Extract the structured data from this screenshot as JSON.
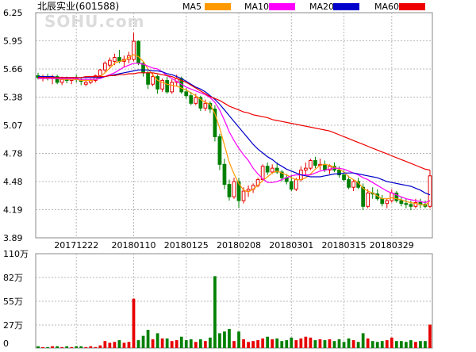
{
  "header": {
    "title": "北辰实业(601588)",
    "watermark": "SOHU.com",
    "legend": [
      {
        "name": "MA5",
        "color": "#ff9900"
      },
      {
        "name": "MA10",
        "color": "#ff00ff"
      },
      {
        "name": "MA20",
        "color": "#0000cc"
      },
      {
        "name": "MA60",
        "color": "#ee0000"
      }
    ]
  },
  "colors": {
    "up": "#e60000",
    "down": "#008000",
    "grid": "#b8b8b8",
    "frame": "#888888"
  },
  "chart_data": [
    {
      "type": "candlestick",
      "ylim": [
        3.89,
        6.25
      ],
      "y_ticks": [
        "6.25",
        "5.95",
        "5.66",
        "5.38",
        "5.07",
        "4.78",
        "4.48",
        "4.19",
        "3.89"
      ],
      "x_labels": [
        {
          "label": "20171222",
          "index": 8
        },
        {
          "label": "20180110",
          "index": 20
        },
        {
          "label": "20180125",
          "index": 31
        },
        {
          "label": "20180208",
          "index": 42
        },
        {
          "label": "20180301",
          "index": 53
        },
        {
          "label": "20180315",
          "index": 64
        },
        {
          "label": "20180329",
          "index": 74
        }
      ],
      "candles": [
        [
          5.59,
          5.62,
          5.55,
          5.57
        ],
        [
          5.57,
          5.6,
          5.53,
          5.58
        ],
        [
          5.58,
          5.61,
          5.54,
          5.56
        ],
        [
          5.56,
          5.6,
          5.5,
          5.58
        ],
        [
          5.58,
          5.6,
          5.5,
          5.52
        ],
        [
          5.52,
          5.58,
          5.49,
          5.55
        ],
        [
          5.55,
          5.58,
          5.51,
          5.54
        ],
        [
          5.54,
          5.57,
          5.5,
          5.56
        ],
        [
          5.56,
          5.6,
          5.52,
          5.55
        ],
        [
          5.55,
          5.57,
          5.49,
          5.53
        ],
        [
          5.5,
          5.56,
          5.48,
          5.52
        ],
        [
          5.52,
          5.56,
          5.5,
          5.54
        ],
        [
          5.54,
          5.6,
          5.52,
          5.59
        ],
        [
          5.59,
          5.66,
          5.57,
          5.65
        ],
        [
          5.65,
          5.74,
          5.62,
          5.72
        ],
        [
          5.7,
          5.78,
          5.66,
          5.75
        ],
        [
          5.74,
          5.82,
          5.7,
          5.78
        ],
        [
          5.78,
          5.86,
          5.72,
          5.74
        ],
        [
          5.74,
          5.8,
          5.68,
          5.76
        ],
        [
          5.76,
          5.84,
          5.72,
          5.8
        ],
        [
          5.76,
          6.04,
          5.74,
          5.95
        ],
        [
          5.95,
          5.96,
          5.7,
          5.72
        ],
        [
          5.72,
          5.74,
          5.58,
          5.62
        ],
        [
          5.62,
          5.64,
          5.45,
          5.5
        ],
        [
          5.5,
          5.62,
          5.48,
          5.58
        ],
        [
          5.58,
          5.6,
          5.4,
          5.45
        ],
        [
          5.45,
          5.56,
          5.42,
          5.54
        ],
        [
          5.54,
          5.58,
          5.4,
          5.42
        ],
        [
          5.42,
          5.55,
          5.4,
          5.52
        ],
        [
          5.52,
          5.6,
          5.48,
          5.56
        ],
        [
          5.56,
          5.58,
          5.4,
          5.42
        ],
        [
          5.42,
          5.46,
          5.35,
          5.38
        ],
        [
          5.38,
          5.42,
          5.28,
          5.3
        ],
        [
          5.3,
          5.4,
          5.28,
          5.36
        ],
        [
          5.36,
          5.38,
          5.22,
          5.25
        ],
        [
          5.25,
          5.34,
          5.22,
          5.3
        ],
        [
          5.3,
          5.32,
          5.2,
          5.24
        ],
        [
          5.24,
          5.28,
          4.9,
          4.95
        ],
        [
          4.95,
          4.98,
          4.6,
          4.66
        ],
        [
          4.66,
          4.72,
          4.4,
          4.45
        ],
        [
          4.45,
          4.5,
          4.28,
          4.32
        ],
        [
          4.32,
          4.52,
          4.3,
          4.48
        ],
        [
          4.48,
          4.52,
          4.2,
          4.28
        ],
        [
          4.28,
          4.42,
          4.25,
          4.38
        ],
        [
          4.38,
          4.44,
          4.32,
          4.4
        ],
        [
          4.4,
          4.46,
          4.36,
          4.44
        ],
        [
          4.44,
          4.52,
          4.42,
          4.5
        ],
        [
          4.5,
          4.66,
          4.48,
          4.64
        ],
        [
          4.64,
          4.68,
          4.55,
          4.58
        ],
        [
          4.58,
          4.66,
          4.56,
          4.62
        ],
        [
          4.62,
          4.68,
          4.56,
          4.58
        ],
        [
          4.58,
          4.6,
          4.48,
          4.52
        ],
        [
          4.52,
          4.56,
          4.45,
          4.48
        ],
        [
          4.48,
          4.55,
          4.38,
          4.4
        ],
        [
          4.4,
          4.52,
          4.38,
          4.5
        ],
        [
          4.5,
          4.64,
          4.48,
          4.6
        ],
        [
          4.6,
          4.68,
          4.55,
          4.62
        ],
        [
          4.62,
          4.72,
          4.6,
          4.7
        ],
        [
          4.7,
          4.74,
          4.62,
          4.65
        ],
        [
          4.65,
          4.72,
          4.6,
          4.66
        ],
        [
          4.66,
          4.7,
          4.58,
          4.6
        ],
        [
          4.6,
          4.66,
          4.56,
          4.64
        ],
        [
          4.64,
          4.68,
          4.58,
          4.6
        ],
        [
          4.6,
          4.64,
          4.52,
          4.55
        ],
        [
          4.55,
          4.6,
          4.48,
          4.5
        ],
        [
          4.5,
          4.54,
          4.4,
          4.42
        ],
        [
          4.42,
          4.5,
          4.38,
          4.48
        ],
        [
          4.48,
          4.52,
          4.4,
          4.42
        ],
        [
          4.42,
          4.46,
          4.18,
          4.22
        ],
        [
          4.22,
          4.4,
          4.2,
          4.36
        ],
        [
          4.36,
          4.42,
          4.3,
          4.35
        ],
        [
          4.35,
          4.4,
          4.28,
          4.3
        ],
        [
          4.3,
          4.34,
          4.22,
          4.25
        ],
        [
          4.25,
          4.3,
          4.2,
          4.28
        ],
        [
          4.28,
          4.4,
          4.26,
          4.36
        ],
        [
          4.36,
          4.38,
          4.26,
          4.28
        ],
        [
          4.28,
          4.32,
          4.22,
          4.25
        ],
        [
          4.25,
          4.3,
          4.2,
          4.24
        ],
        [
          4.24,
          4.28,
          4.18,
          4.22
        ],
        [
          4.22,
          4.3,
          4.2,
          4.26
        ],
        [
          4.26,
          4.3,
          4.2,
          4.24
        ],
        [
          4.24,
          4.28,
          4.2,
          4.22
        ],
        [
          4.22,
          4.6,
          4.2,
          4.54
        ]
      ],
      "ma": {
        "MA5": [
          5.57,
          5.57,
          5.57,
          5.57,
          5.56,
          5.55,
          5.55,
          5.55,
          5.55,
          5.54,
          5.54,
          5.54,
          5.55,
          5.58,
          5.62,
          5.67,
          5.72,
          5.74,
          5.75,
          5.78,
          5.81,
          5.79,
          5.74,
          5.66,
          5.6,
          5.54,
          5.52,
          5.5,
          5.49,
          5.48,
          5.46,
          5.44,
          5.41,
          5.38,
          5.34,
          5.31,
          5.29,
          5.19,
          5.04,
          4.86,
          4.68,
          4.56,
          4.46,
          4.39,
          4.37,
          4.4,
          4.44,
          4.49,
          4.53,
          4.57,
          4.59,
          4.57,
          4.55,
          4.52,
          4.5,
          4.5,
          4.52,
          4.56,
          4.61,
          4.65,
          4.66,
          4.65,
          4.63,
          4.61,
          4.58,
          4.53,
          4.5,
          4.47,
          4.41,
          4.38,
          4.36,
          4.33,
          4.3,
          4.3,
          4.31,
          4.3,
          4.29,
          4.27,
          4.26,
          4.25,
          4.24,
          4.23,
          4.28
        ],
        "MA10": [
          5.56,
          5.56,
          5.56,
          5.56,
          5.56,
          5.56,
          5.56,
          5.56,
          5.56,
          5.55,
          5.55,
          5.55,
          5.55,
          5.56,
          5.58,
          5.6,
          5.62,
          5.65,
          5.68,
          5.7,
          5.72,
          5.72,
          5.71,
          5.69,
          5.67,
          5.66,
          5.63,
          5.59,
          5.56,
          5.53,
          5.5,
          5.47,
          5.45,
          5.43,
          5.41,
          5.39,
          5.36,
          5.31,
          5.23,
          5.12,
          5.0,
          4.91,
          4.83,
          4.76,
          4.7,
          4.62,
          4.56,
          4.51,
          4.47,
          4.47,
          4.48,
          4.5,
          4.52,
          4.54,
          4.55,
          4.55,
          4.55,
          4.55,
          4.57,
          4.59,
          4.6,
          4.61,
          4.62,
          4.62,
          4.61,
          4.59,
          4.57,
          4.55,
          4.52,
          4.5,
          4.47,
          4.44,
          4.41,
          4.38,
          4.36,
          4.34,
          4.32,
          4.3,
          4.29,
          4.28,
          4.27,
          4.26,
          4.28
        ],
        "MA20": [
          5.58,
          5.58,
          5.58,
          5.58,
          5.57,
          5.57,
          5.57,
          5.57,
          5.57,
          5.57,
          5.57,
          5.57,
          5.57,
          5.57,
          5.58,
          5.59,
          5.6,
          5.61,
          5.62,
          5.63,
          5.64,
          5.65,
          5.65,
          5.65,
          5.64,
          5.64,
          5.63,
          5.61,
          5.6,
          5.58,
          5.56,
          5.53,
          5.5,
          5.47,
          5.45,
          5.42,
          5.38,
          5.34,
          5.29,
          5.23,
          5.17,
          5.11,
          5.05,
          4.99,
          4.93,
          4.87,
          4.82,
          4.78,
          4.74,
          4.71,
          4.67,
          4.64,
          4.61,
          4.59,
          4.57,
          4.55,
          4.54,
          4.53,
          4.53,
          4.53,
          4.54,
          4.55,
          4.56,
          4.56,
          4.57,
          4.57,
          4.57,
          4.56,
          4.55,
          4.54,
          4.53,
          4.52,
          4.5,
          4.48,
          4.47,
          4.46,
          4.45,
          4.44,
          4.43,
          4.41,
          4.39,
          4.36,
          4.34
        ],
        "MA60": [
          5.57,
          5.57,
          5.57,
          5.57,
          5.57,
          5.57,
          5.57,
          5.57,
          5.57,
          5.57,
          5.58,
          5.58,
          5.58,
          5.58,
          5.58,
          5.59,
          5.59,
          5.6,
          5.6,
          5.61,
          5.61,
          5.62,
          5.62,
          5.62,
          5.62,
          5.61,
          5.6,
          5.59,
          5.58,
          5.56,
          5.54,
          5.52,
          5.49,
          5.46,
          5.43,
          5.4,
          5.37,
          5.35,
          5.33,
          5.3,
          5.27,
          5.25,
          5.23,
          5.21,
          5.2,
          5.18,
          5.17,
          5.16,
          5.15,
          5.13,
          5.12,
          5.11,
          5.1,
          5.09,
          5.08,
          5.07,
          5.06,
          5.05,
          5.04,
          5.03,
          5.02,
          5.01,
          4.99,
          4.97,
          4.95,
          4.93,
          4.91,
          4.89,
          4.87,
          4.85,
          4.83,
          4.81,
          4.79,
          4.77,
          4.75,
          4.73,
          4.71,
          4.69,
          4.67,
          4.65,
          4.63,
          4.61,
          4.6
        ]
      }
    },
    {
      "type": "bar",
      "name": "volume",
      "unit": "万",
      "ylim": [
        0,
        110
      ],
      "y_ticks": [
        "110万",
        "82万",
        "55万",
        "27万",
        "0"
      ],
      "values": [
        3,
        2,
        2,
        3,
        3,
        2,
        3,
        2,
        3,
        3,
        2,
        3,
        2,
        4,
        9,
        7,
        8,
        10,
        7,
        8,
        58,
        10,
        15,
        22,
        11,
        18,
        12,
        12,
        9,
        10,
        14,
        10,
        11,
        8,
        11,
        9,
        13,
        84,
        18,
        20,
        23,
        9,
        20,
        11,
        8,
        9,
        10,
        12,
        14,
        11,
        12,
        9,
        10,
        13,
        10,
        12,
        14,
        13,
        10,
        11,
        10,
        11,
        9,
        11,
        8,
        12,
        10,
        8,
        18,
        12,
        9,
        8,
        9,
        10,
        13,
        9,
        9,
        8,
        10,
        8,
        9,
        9,
        28
      ]
    }
  ]
}
